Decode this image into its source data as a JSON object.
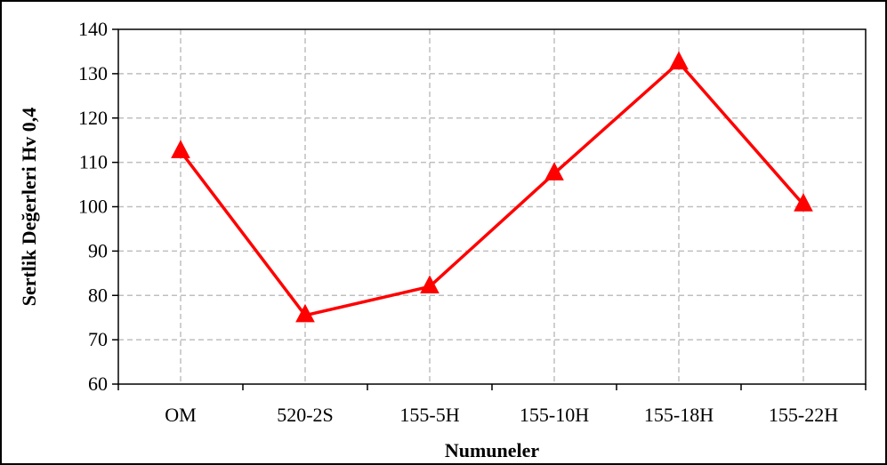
{
  "chart_data": {
    "type": "line",
    "title": "",
    "xlabel": "Numuneler",
    "ylabel": "Sertlik Değerleri Hv 0,4",
    "categories": [
      "OM",
      "520-2S",
      "155-5H",
      "155-10H",
      "155-18H",
      "155-22H"
    ],
    "series": [
      {
        "values": [
          112.5,
          75.5,
          82,
          107.5,
          132.5,
          100.5
        ],
        "color": "#ff0000",
        "marker": "triangle"
      }
    ],
    "ylim": [
      60,
      140
    ],
    "yticks": [
      60,
      70,
      80,
      90,
      100,
      110,
      120,
      130,
      140
    ],
    "grid": true,
    "grid_style": "dashed",
    "legend": "none"
  }
}
